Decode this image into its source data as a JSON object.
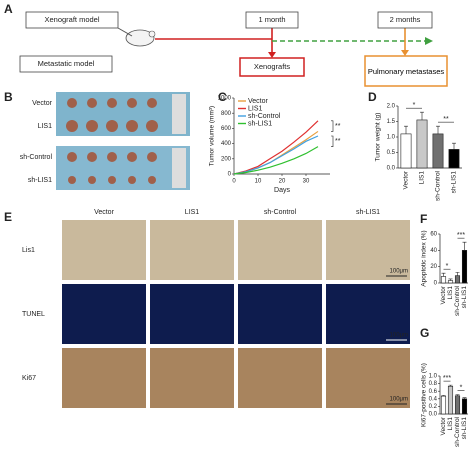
{
  "panel_labels": [
    "A",
    "B",
    "C",
    "D",
    "E",
    "F",
    "G"
  ],
  "diagram": {
    "xenograft_model": "Xenograft model",
    "metastatic_model": "Metastatic model",
    "one_month": "1 month",
    "two_months": "2 months",
    "xenografts": "Xenografts",
    "pulmonary_metastases": "Pulmonary metastases"
  },
  "photo_b": {
    "rows": [
      "Vector",
      "LIS1",
      "sh-Control",
      "sh-LIS1"
    ]
  },
  "photo_e": {
    "columns": [
      "Vector",
      "LIS1",
      "sh-Control",
      "sh-LIS1"
    ],
    "rows": [
      "Lis1",
      "TUNEL",
      "Ki67"
    ],
    "scale_bars": [
      "100μm",
      "100μm",
      "100μm"
    ]
  },
  "chart_data": [
    {
      "type": "line",
      "x_label": "Days",
      "y_label": "Tumor volume (mm³)",
      "x": [
        0,
        5,
        10,
        15,
        20,
        25,
        30,
        35
      ],
      "series": [
        {
          "name": "Vector",
          "color": "#e8a040",
          "values": [
            0,
            30,
            80,
            150,
            250,
            350,
            450,
            560
          ]
        },
        {
          "name": "LIS1",
          "color": "#e03030",
          "values": [
            0,
            40,
            100,
            200,
            300,
            420,
            550,
            700
          ]
        },
        {
          "name": "sh-Control",
          "color": "#40a0e0",
          "values": [
            0,
            30,
            80,
            150,
            240,
            330,
            430,
            500
          ]
        },
        {
          "name": "sh-LIS1",
          "color": "#30c030",
          "values": [
            0,
            20,
            50,
            90,
            140,
            200,
            270,
            360
          ]
        }
      ],
      "xlim": [
        0,
        40
      ],
      "xticks": [
        0,
        10,
        20,
        30
      ],
      "ylim": [
        0,
        1000
      ],
      "yticks": [
        0,
        200,
        400,
        600,
        800,
        1000
      ],
      "annotations": [
        "**",
        "**"
      ]
    },
    {
      "type": "bar",
      "y_label": "Tumor weight (g)",
      "categories": [
        "Vector",
        "LIS1",
        "sh-Control",
        "sh-LIS1"
      ],
      "values": [
        1.1,
        1.55,
        1.1,
        0.6
      ],
      "errors": [
        0.25,
        0.25,
        0.25,
        0.2
      ],
      "colors": [
        "#ffffff",
        "#c8c8c8",
        "#707070",
        "#000000"
      ],
      "ylim": [
        0,
        2
      ],
      "yticks": [
        {
          "value": 0,
          "label": "0.0"
        },
        {
          "value": 0.5,
          "label": "0.5"
        },
        {
          "value": 1,
          "label": "1.0"
        },
        {
          "value": 1.5,
          "label": "1.5"
        },
        {
          "value": 2,
          "label": "2.0"
        }
      ],
      "annotations": [
        "*",
        "**"
      ]
    },
    {
      "type": "bar",
      "y_label": "Apoptotic index (%)",
      "categories": [
        "Vector",
        "LIS1",
        "sh-Control",
        "sh-LIS1"
      ],
      "values": [
        8,
        3,
        9,
        40
      ],
      "errors": [
        4,
        2,
        4,
        10
      ],
      "colors": [
        "#ffffff",
        "#ffffff",
        "#707070",
        "#000000"
      ],
      "ylim": [
        0,
        60
      ],
      "yticks": [
        0,
        20,
        40,
        60
      ],
      "annotations": [
        "*",
        "***"
      ]
    },
    {
      "type": "bar",
      "y_label": "Ki67-positive cells (%)",
      "categories": [
        "Vector",
        "LIS1",
        "sh-Control",
        "sh-LIS1"
      ],
      "values": [
        0.47,
        0.73,
        0.48,
        0.4
      ],
      "errors": [
        0.02,
        0.03,
        0.03,
        0.03
      ],
      "colors": [
        "#ffffff",
        "#c8c8c8",
        "#707070",
        "#000000"
      ],
      "ylim": [
        0,
        1
      ],
      "yticks": [
        {
          "value": 0,
          "label": "0.0"
        },
        {
          "value": 0.2,
          "label": "0.2"
        },
        {
          "value": 0.4,
          "label": "0.4"
        },
        {
          "value": 0.6,
          "label": "0.6"
        },
        {
          "value": 0.8,
          "label": "0.8"
        },
        {
          "value": 1,
          "label": "1.0"
        }
      ],
      "annotations": [
        "***",
        "*"
      ]
    }
  ]
}
